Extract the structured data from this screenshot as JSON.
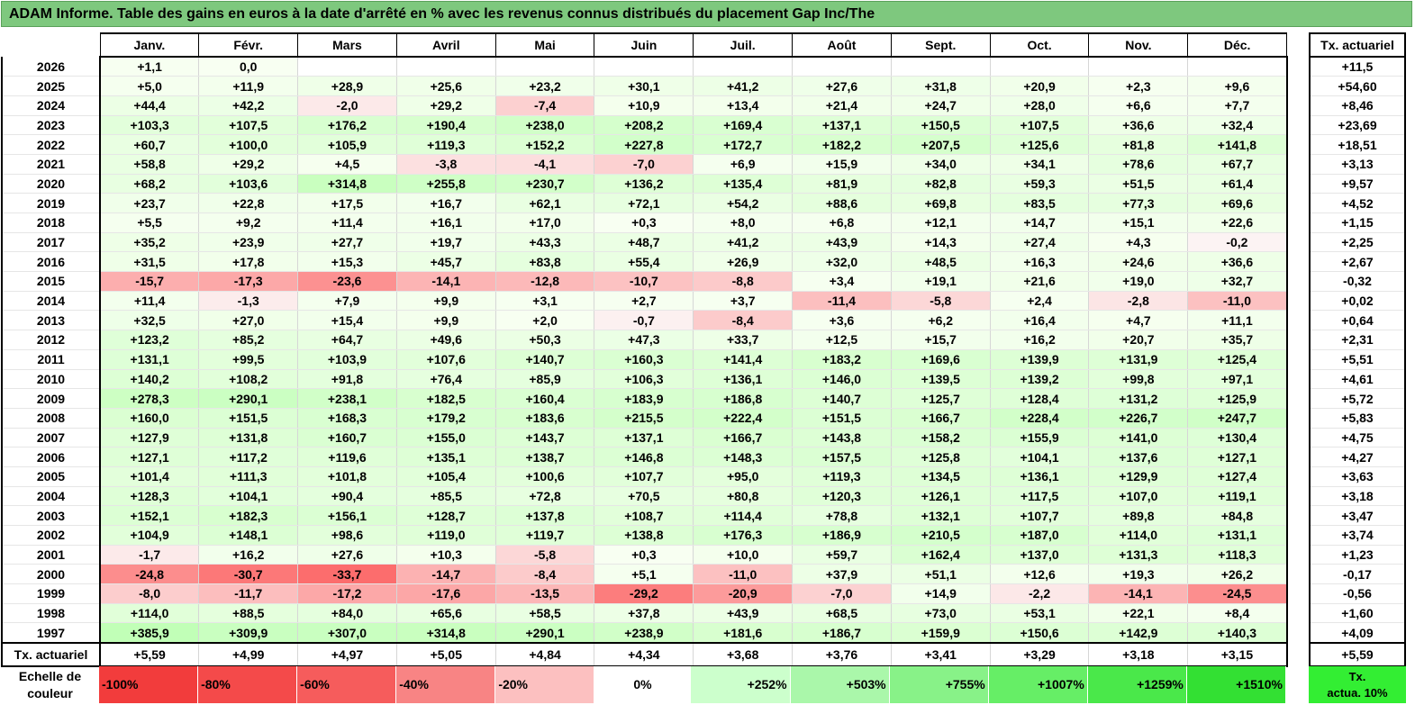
{
  "title": "ADAM Informe. Table des gains en euros à la date d'arrêté en % avec les revenus connus distribués du placement Gap Inc/The",
  "chart_data": {
    "type": "heatmap",
    "title": "ADAM Informe. Table des gains en euros à la date d'arrêté en % avec les revenus connus distribués du placement Gap Inc/The",
    "columns": [
      "Janv.",
      "Févr.",
      "Mars",
      "Avril",
      "Mai",
      "Juin",
      "Juil.",
      "Août",
      "Sept.",
      "Oct.",
      "Nov.",
      "Déc."
    ],
    "side_header": "Tx. actuariel",
    "rows": [
      {
        "year": "2026",
        "values": [
          "+1,1",
          "0,0",
          "",
          "",
          "",
          "",
          "",
          "",
          "",
          "",
          "",
          ""
        ],
        "tx": "+11,5"
      },
      {
        "year": "2025",
        "values": [
          "+5,0",
          "+11,9",
          "+28,9",
          "+25,6",
          "+23,2",
          "+30,1",
          "+41,2",
          "+27,6",
          "+31,8",
          "+20,9",
          "+2,3",
          "+9,6"
        ],
        "tx": "+54,60"
      },
      {
        "year": "2024",
        "values": [
          "+44,4",
          "+42,2",
          "-2,0",
          "+29,2",
          "-7,4",
          "+10,9",
          "+13,4",
          "+21,4",
          "+24,7",
          "+28,0",
          "+6,6",
          "+7,7"
        ],
        "tx": "+8,46"
      },
      {
        "year": "2023",
        "values": [
          "+103,3",
          "+107,5",
          "+176,2",
          "+190,4",
          "+238,0",
          "+208,2",
          "+169,4",
          "+137,1",
          "+150,5",
          "+107,5",
          "+36,6",
          "+32,4"
        ],
        "tx": "+23,69"
      },
      {
        "year": "2022",
        "values": [
          "+60,7",
          "+100,0",
          "+105,9",
          "+119,3",
          "+152,2",
          "+227,8",
          "+172,7",
          "+182,2",
          "+207,5",
          "+125,6",
          "+81,8",
          "+141,8"
        ],
        "tx": "+18,51"
      },
      {
        "year": "2021",
        "values": [
          "+58,8",
          "+29,2",
          "+4,5",
          "-3,8",
          "-4,1",
          "-7,0",
          "+6,9",
          "+15,9",
          "+34,0",
          "+34,1",
          "+78,6",
          "+67,7"
        ],
        "tx": "+3,13"
      },
      {
        "year": "2020",
        "values": [
          "+68,2",
          "+103,6",
          "+314,8",
          "+255,8",
          "+230,7",
          "+136,2",
          "+135,4",
          "+81,9",
          "+82,8",
          "+59,3",
          "+51,5",
          "+61,4"
        ],
        "tx": "+9,57"
      },
      {
        "year": "2019",
        "values": [
          "+23,7",
          "+22,8",
          "+17,5",
          "+16,7",
          "+62,1",
          "+72,1",
          "+54,2",
          "+88,6",
          "+69,8",
          "+83,5",
          "+77,3",
          "+69,6"
        ],
        "tx": "+4,52"
      },
      {
        "year": "2018",
        "values": [
          "+5,5",
          "+9,2",
          "+11,4",
          "+16,1",
          "+17,0",
          "+0,3",
          "+8,0",
          "+6,8",
          "+12,1",
          "+14,7",
          "+15,1",
          "+22,6"
        ],
        "tx": "+1,15"
      },
      {
        "year": "2017",
        "values": [
          "+35,2",
          "+23,9",
          "+27,7",
          "+19,7",
          "+43,3",
          "+48,7",
          "+41,2",
          "+43,9",
          "+14,3",
          "+27,4",
          "+4,3",
          "-0,2"
        ],
        "tx": "+2,25"
      },
      {
        "year": "2016",
        "values": [
          "+31,5",
          "+17,8",
          "+15,3",
          "+45,7",
          "+83,8",
          "+55,4",
          "+26,9",
          "+32,0",
          "+48,5",
          "+16,3",
          "+24,6",
          "+36,6"
        ],
        "tx": "+2,67"
      },
      {
        "year": "2015",
        "values": [
          "-15,7",
          "-17,3",
          "-23,6",
          "-14,1",
          "-12,8",
          "-10,7",
          "-8,8",
          "+3,4",
          "+19,1",
          "+21,6",
          "+19,0",
          "+32,7"
        ],
        "tx": "-0,32"
      },
      {
        "year": "2014",
        "values": [
          "+11,4",
          "-1,3",
          "+7,9",
          "+9,9",
          "+3,1",
          "+2,7",
          "+3,7",
          "-11,4",
          "-5,8",
          "+2,4",
          "-2,8",
          "-11,0"
        ],
        "tx": "+0,02"
      },
      {
        "year": "2013",
        "values": [
          "+32,5",
          "+27,0",
          "+15,4",
          "+9,9",
          "+2,0",
          "-0,7",
          "-8,4",
          "+3,6",
          "+6,2",
          "+16,4",
          "+4,7",
          "+11,1"
        ],
        "tx": "+0,64"
      },
      {
        "year": "2012",
        "values": [
          "+123,2",
          "+85,2",
          "+64,7",
          "+49,6",
          "+50,3",
          "+47,3",
          "+33,7",
          "+12,5",
          "+15,7",
          "+16,2",
          "+20,7",
          "+35,7"
        ],
        "tx": "+2,31"
      },
      {
        "year": "2011",
        "values": [
          "+131,1",
          "+99,5",
          "+103,9",
          "+107,6",
          "+140,7",
          "+160,3",
          "+141,4",
          "+183,2",
          "+169,6",
          "+139,9",
          "+131,9",
          "+125,4"
        ],
        "tx": "+5,51"
      },
      {
        "year": "2010",
        "values": [
          "+140,2",
          "+108,2",
          "+91,8",
          "+76,4",
          "+85,9",
          "+106,3",
          "+136,1",
          "+146,0",
          "+139,5",
          "+139,2",
          "+99,8",
          "+97,1"
        ],
        "tx": "+4,61"
      },
      {
        "year": "2009",
        "values": [
          "+278,3",
          "+290,1",
          "+238,1",
          "+182,5",
          "+160,4",
          "+183,9",
          "+186,8",
          "+140,7",
          "+125,7",
          "+128,4",
          "+131,2",
          "+125,9"
        ],
        "tx": "+5,72"
      },
      {
        "year": "2008",
        "values": [
          "+160,0",
          "+151,5",
          "+168,3",
          "+179,2",
          "+183,6",
          "+215,5",
          "+222,4",
          "+151,5",
          "+166,7",
          "+228,4",
          "+226,7",
          "+247,7"
        ],
        "tx": "+5,83"
      },
      {
        "year": "2007",
        "values": [
          "+127,9",
          "+131,8",
          "+160,7",
          "+155,0",
          "+143,7",
          "+137,1",
          "+166,7",
          "+143,8",
          "+158,2",
          "+155,9",
          "+141,0",
          "+130,4"
        ],
        "tx": "+4,75"
      },
      {
        "year": "2006",
        "values": [
          "+127,1",
          "+117,2",
          "+119,6",
          "+135,1",
          "+138,7",
          "+146,8",
          "+148,3",
          "+157,5",
          "+125,8",
          "+104,1",
          "+137,6",
          "+127,1"
        ],
        "tx": "+4,27"
      },
      {
        "year": "2005",
        "values": [
          "+101,4",
          "+111,3",
          "+101,8",
          "+105,4",
          "+100,6",
          "+107,7",
          "+95,0",
          "+119,3",
          "+134,5",
          "+136,1",
          "+129,9",
          "+127,4"
        ],
        "tx": "+3,63"
      },
      {
        "year": "2004",
        "values": [
          "+128,3",
          "+104,1",
          "+90,4",
          "+85,5",
          "+72,8",
          "+70,5",
          "+80,8",
          "+120,3",
          "+126,1",
          "+117,5",
          "+107,0",
          "+119,1"
        ],
        "tx": "+3,18"
      },
      {
        "year": "2003",
        "values": [
          "+152,1",
          "+182,3",
          "+156,1",
          "+128,7",
          "+137,8",
          "+108,7",
          "+114,4",
          "+78,8",
          "+132,1",
          "+107,7",
          "+89,8",
          "+84,8"
        ],
        "tx": "+3,47"
      },
      {
        "year": "2002",
        "values": [
          "+104,9",
          "+148,1",
          "+98,6",
          "+119,0",
          "+119,7",
          "+138,8",
          "+176,3",
          "+186,9",
          "+210,5",
          "+187,0",
          "+114,0",
          "+131,1"
        ],
        "tx": "+3,74"
      },
      {
        "year": "2001",
        "values": [
          "-1,7",
          "+16,2",
          "+27,6",
          "+10,3",
          "-5,8",
          "+0,3",
          "+10,0",
          "+59,7",
          "+162,4",
          "+137,0",
          "+131,3",
          "+118,3"
        ],
        "tx": "+1,23"
      },
      {
        "year": "2000",
        "values": [
          "-24,8",
          "-30,7",
          "-33,7",
          "-14,7",
          "-8,4",
          "+5,1",
          "-11,0",
          "+37,9",
          "+51,1",
          "+12,6",
          "+19,3",
          "+26,2"
        ],
        "tx": "-0,17"
      },
      {
        "year": "1999",
        "values": [
          "-8,0",
          "-11,7",
          "-17,2",
          "-17,6",
          "-13,5",
          "-29,2",
          "-20,9",
          "-7,0",
          "+14,9",
          "-2,2",
          "-14,1",
          "-24,5"
        ],
        "tx": "-0,56"
      },
      {
        "year": "1998",
        "values": [
          "+114,0",
          "+88,5",
          "+84,0",
          "+65,6",
          "+58,5",
          "+37,8",
          "+43,9",
          "+68,5",
          "+73,0",
          "+53,1",
          "+22,1",
          "+8,4"
        ],
        "tx": "+1,60"
      },
      {
        "year": "1997",
        "values": [
          "+385,9",
          "+309,9",
          "+307,0",
          "+314,8",
          "+290,1",
          "+238,9",
          "+181,6",
          "+186,7",
          "+159,9",
          "+150,6",
          "+142,9",
          "+140,3"
        ],
        "tx": "+4,09"
      }
    ],
    "footer": {
      "label": "Tx. actuariel",
      "values": [
        "+5,59",
        "+4,99",
        "+4,97",
        "+5,05",
        "+4,84",
        "+4,34",
        "+3,68",
        "+3,76",
        "+3,41",
        "+3,29",
        "+3,18",
        "+3,15"
      ],
      "tx": "+5,59"
    },
    "legend": {
      "label_line1": "Echelle de",
      "label_line2": "couleur",
      "stops": [
        "-100%",
        "-80%",
        "-60%",
        "-40%",
        "-20%",
        "0%",
        "+252%",
        "+503%",
        "+755%",
        "+1007%",
        "+1259%",
        "+1510%"
      ],
      "stop_colors": [
        "#f23c3c",
        "#f44a4a",
        "#f65c5c",
        "#f88484",
        "#fcc0c0",
        "#ffffff",
        "#ccffcc",
        "#aaf7aa",
        "#88f288",
        "#66ee66",
        "#4ae84a",
        "#33e033"
      ],
      "side_line1": "Tx.",
      "side_line2": "actua. 10%",
      "side_color": "#33ee33"
    },
    "colors": {
      "title_bg": "#7ec87e",
      "negative": "#ff0000",
      "positive": "#00cc00"
    }
  }
}
